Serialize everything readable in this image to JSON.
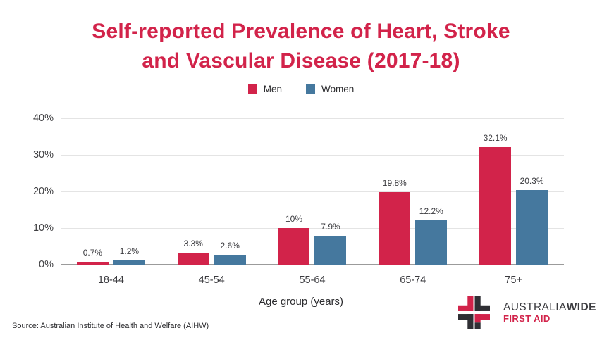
{
  "title": {
    "line1": "Self-reported Prevalence of Heart, Stroke",
    "line2": "and Vascular Disease (2017-18)"
  },
  "chart_data": {
    "type": "bar",
    "title": "Self-reported Prevalence of Heart, Stroke and Vascular Disease (2017-18)",
    "categories": [
      "18-44",
      "45-54",
      "55-64",
      "65-74",
      "75+"
    ],
    "series": [
      {
        "name": "Men",
        "color": "#d2234a",
        "values": [
          0.7,
          3.3,
          10,
          19.8,
          32.1
        ],
        "labels": [
          "0.7%",
          "3.3%",
          "10%",
          "19.8%",
          "32.1%"
        ]
      },
      {
        "name": "Women",
        "color": "#45789e",
        "values": [
          1.2,
          2.6,
          7.9,
          12.2,
          20.3
        ],
        "labels": [
          "1.2%",
          "2.6%",
          "7.9%",
          "12.2%",
          "20.3%"
        ]
      }
    ],
    "xlabel": "Age group (years)",
    "ylabel": "",
    "ylim": [
      0,
      40
    ],
    "yticks": [
      "0%",
      "10%",
      "20%",
      "30%",
      "40%"
    ],
    "grid": true,
    "legend_position": "top"
  },
  "footer": {
    "source": "Source: Australian Institute of Health and Welfare (AIHW)"
  },
  "logo": {
    "text_part1": "AUSTRALIA",
    "text_part2": "WIDE",
    "text_part3": "FIRST AID",
    "colors": {
      "red": "#d2234a",
      "dark": "#2f2f34"
    }
  },
  "colors": {
    "accent_red": "#d2234a",
    "accent_blue": "#45789e",
    "gridline": "#e4e4e4",
    "baseline": "#9b9b9b",
    "text_dark": "#3a3a3e"
  }
}
